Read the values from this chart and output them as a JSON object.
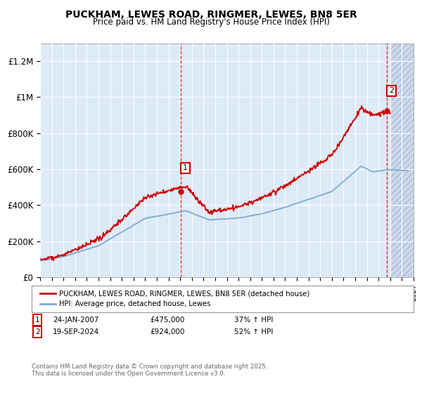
{
  "title": "PUCKHAM, LEWES ROAD, RINGMER, LEWES, BN8 5ER",
  "subtitle": "Price paid vs. HM Land Registry's House Price Index (HPI)",
  "ylim": [
    0,
    1300000
  ],
  "xlim_start": 1995.0,
  "xlim_end": 2027.0,
  "yticks": [
    0,
    200000,
    400000,
    600000,
    800000,
    1000000,
    1200000
  ],
  "ytick_labels": [
    "£0",
    "£200K",
    "£400K",
    "£600K",
    "£800K",
    "£1M",
    "£1.2M"
  ],
  "background_color": "#ddeaf7",
  "hatch_bg_color": "#ccdaec",
  "grid_color": "#ffffff",
  "red_line_color": "#cc0000",
  "blue_line_color": "#7aafd4",
  "ann1_x": 2007.07,
  "ann1_y": 475000,
  "ann2_x": 2024.72,
  "ann2_y": 924000,
  "future_start": 2025.0,
  "legend_red": "PUCKHAM, LEWES ROAD, RINGMER, LEWES, BN8 5ER (detached house)",
  "legend_blue": "HPI: Average price, detached house, Lewes",
  "note1_label": "1",
  "note1_date": "24-JAN-2007",
  "note1_price": "£475,000",
  "note1_pct": "37% ↑ HPI",
  "note2_label": "2",
  "note2_date": "19-SEP-2024",
  "note2_price": "£924,000",
  "note2_pct": "52% ↑ HPI",
  "footer": "Contains HM Land Registry data © Crown copyright and database right 2025.\nThis data is licensed under the Open Government Licence v3.0."
}
